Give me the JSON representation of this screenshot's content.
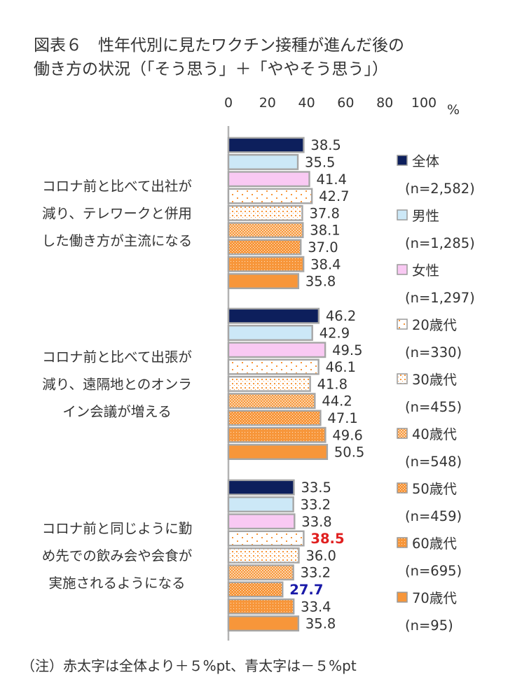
{
  "chart_data": {
    "type": "bar",
    "orientation": "horizontal",
    "title": "図表６　性年代別に見たワクチン接種が進んだ後の\n働き方の状況（「そう思う」＋「ややそう思う」）",
    "x_unit": "%",
    "xlim": [
      0,
      100
    ],
    "x_ticks": [
      "0",
      "20",
      "40",
      "60",
      "80",
      "100"
    ],
    "categories": [
      "コロナ前と比べて出社が\n減り、テレワークと併用\nした働き方が主流になる",
      "コロナ前と比べて出張が\n減り、遠隔地とのオンラ\nイン会議が増える",
      "コロナ前と同じように勤\nめ先での飲み会や会食が\n実施されるようになる"
    ],
    "series": [
      {
        "name": "全体",
        "n": "(n=2,582)",
        "color": "#0d1f5c",
        "pattern": "solid",
        "values": [
          38.5,
          46.2,
          33.5
        ],
        "labels": [
          "38.5",
          "46.2",
          "33.5"
        ]
      },
      {
        "name": "男性",
        "n": "(n=1,285)",
        "color": "#cce8f7",
        "pattern": "solid",
        "values": [
          35.5,
          42.9,
          33.2
        ],
        "labels": [
          "35.5",
          "42.9",
          "33.2"
        ]
      },
      {
        "name": "女性",
        "n": "(n=1,297)",
        "color": "#f9c9f3",
        "pattern": "solid",
        "values": [
          41.4,
          49.5,
          33.8
        ],
        "labels": [
          "41.4",
          "49.5",
          "33.8"
        ]
      },
      {
        "name": "20歳代",
        "n": "(n=330)",
        "color": "#f7963a",
        "pattern": "dots-sparse",
        "values": [
          42.7,
          46.1,
          38.5
        ],
        "labels": [
          "42.7",
          "46.1",
          "38.5"
        ]
      },
      {
        "name": "30歳代",
        "n": "(n=455)",
        "color": "#f7963a",
        "pattern": "dots-light",
        "values": [
          37.8,
          41.8,
          36.0
        ],
        "labels": [
          "37.8",
          "41.8",
          "36.0"
        ]
      },
      {
        "name": "40歳代",
        "n": "(n=548)",
        "color": "#f7963a",
        "pattern": "check",
        "values": [
          38.1,
          44.2,
          33.2
        ],
        "labels": [
          "38.1",
          "44.2",
          "33.2"
        ]
      },
      {
        "name": "50歳代",
        "n": "(n=459)",
        "color": "#f7963a",
        "pattern": "dots-dense",
        "values": [
          37.0,
          47.1,
          27.7
        ],
        "labels": [
          "37.0",
          "47.1",
          "27.7"
        ]
      },
      {
        "name": "60歳代",
        "n": "(n=695)",
        "color": "#f7963a",
        "pattern": "dots-heavy",
        "values": [
          38.4,
          49.6,
          33.4
        ],
        "labels": [
          "38.4",
          "49.6",
          "33.4"
        ]
      },
      {
        "name": "70歳代",
        "n": "(n=95)",
        "color": "#f7963a",
        "pattern": "solid",
        "values": [
          35.8,
          50.5,
          35.8
        ],
        "labels": [
          "35.8",
          "50.5",
          "35.8"
        ]
      }
    ],
    "highlights": [
      {
        "series": 3,
        "category": 2,
        "color": "#e02020",
        "bold": true
      },
      {
        "series": 6,
        "category": 2,
        "color": "#1a1aa8",
        "bold": true
      }
    ],
    "legend_position": "right"
  },
  "note": "（注）赤太字は全体より＋５%pt、青太字は－５%pt"
}
